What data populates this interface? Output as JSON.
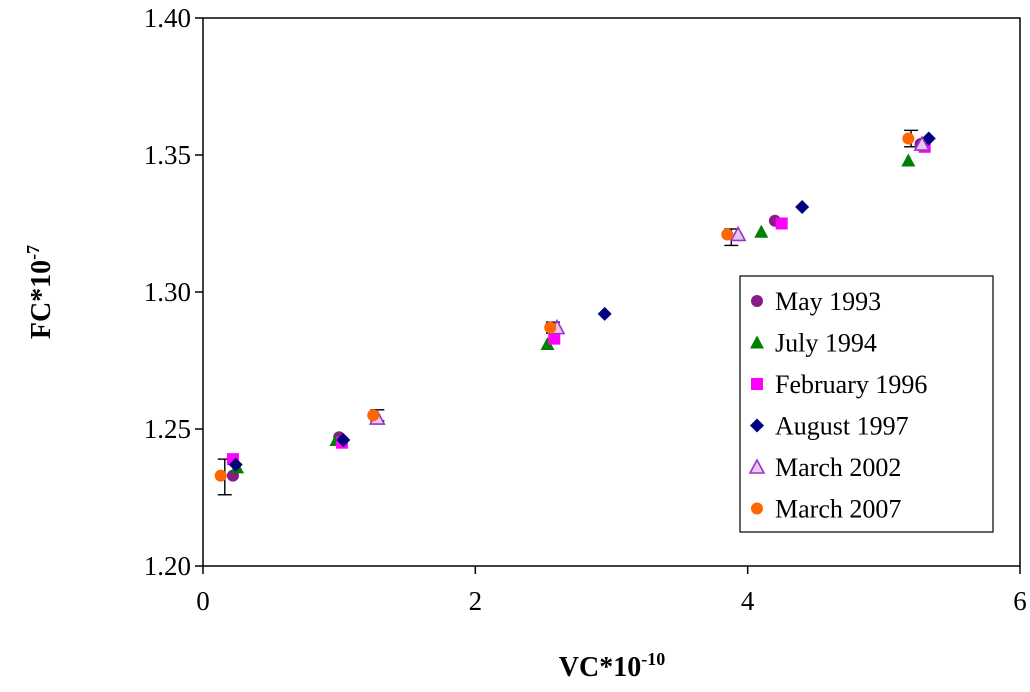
{
  "chart_data": {
    "type": "scatter",
    "xlabel": "VC*10",
    "xlabel_exp": "-10",
    "ylabel": "FC*10",
    "ylabel_exp": "-7",
    "xlim": [
      0,
      6
    ],
    "ylim": [
      1.2,
      1.4
    ],
    "xticks": [
      "0",
      "2",
      "4",
      "6"
    ],
    "yticks": [
      "1.20",
      "1.25",
      "1.30",
      "1.35",
      "1.40"
    ],
    "grid": false,
    "legend_position": "right",
    "series": [
      {
        "name": "May 1993",
        "marker": "circle",
        "color": "#8B1A89",
        "points": [
          [
            0.22,
            1.233
          ],
          [
            1.0,
            1.247
          ],
          [
            4.2,
            1.326
          ],
          [
            5.27,
            1.354
          ]
        ]
      },
      {
        "name": "July 1994",
        "marker": "triangle",
        "color": "#008000",
        "points": [
          [
            0.25,
            1.236
          ],
          [
            0.98,
            1.246
          ],
          [
            2.53,
            1.281
          ],
          [
            4.1,
            1.322
          ],
          [
            5.18,
            1.348
          ]
        ]
      },
      {
        "name": "February 1996",
        "marker": "square",
        "color": "#FF00FF",
        "points": [
          [
            0.22,
            1.239
          ],
          [
            1.02,
            1.245
          ],
          [
            2.58,
            1.283
          ],
          [
            4.25,
            1.325
          ],
          [
            5.3,
            1.353
          ]
        ]
      },
      {
        "name": "August 1997",
        "marker": "diamond",
        "color": "#000080",
        "points": [
          [
            0.24,
            1.237
          ],
          [
            1.03,
            1.246
          ],
          [
            2.95,
            1.292
          ],
          [
            4.4,
            1.331
          ],
          [
            5.33,
            1.356
          ]
        ]
      },
      {
        "name": "March 2002",
        "marker": "triangle-open",
        "color": "#9933CC",
        "points": [
          [
            1.28,
            1.254
          ],
          [
            2.6,
            1.287
          ],
          [
            3.93,
            1.321
          ],
          [
            5.28,
            1.354
          ]
        ]
      },
      {
        "name": "March 2007",
        "marker": "circle",
        "color": "#FF6600",
        "points": [
          [
            0.13,
            1.233
          ],
          [
            1.25,
            1.255
          ],
          [
            2.55,
            1.287
          ],
          [
            3.85,
            1.321
          ],
          [
            5.18,
            1.356
          ]
        ]
      }
    ],
    "error_bars": [
      {
        "x": 0.16,
        "y": 1.232,
        "low": 1.226,
        "high": 1.239
      },
      {
        "x": 1.28,
        "y": 1.255,
        "low": 1.253,
        "high": 1.257
      },
      {
        "x": 2.57,
        "y": 1.287,
        "low": 1.285,
        "high": 1.289
      },
      {
        "x": 3.88,
        "y": 1.32,
        "low": 1.317,
        "high": 1.323
      },
      {
        "x": 5.2,
        "y": 1.356,
        "low": 1.353,
        "high": 1.359
      }
    ]
  }
}
